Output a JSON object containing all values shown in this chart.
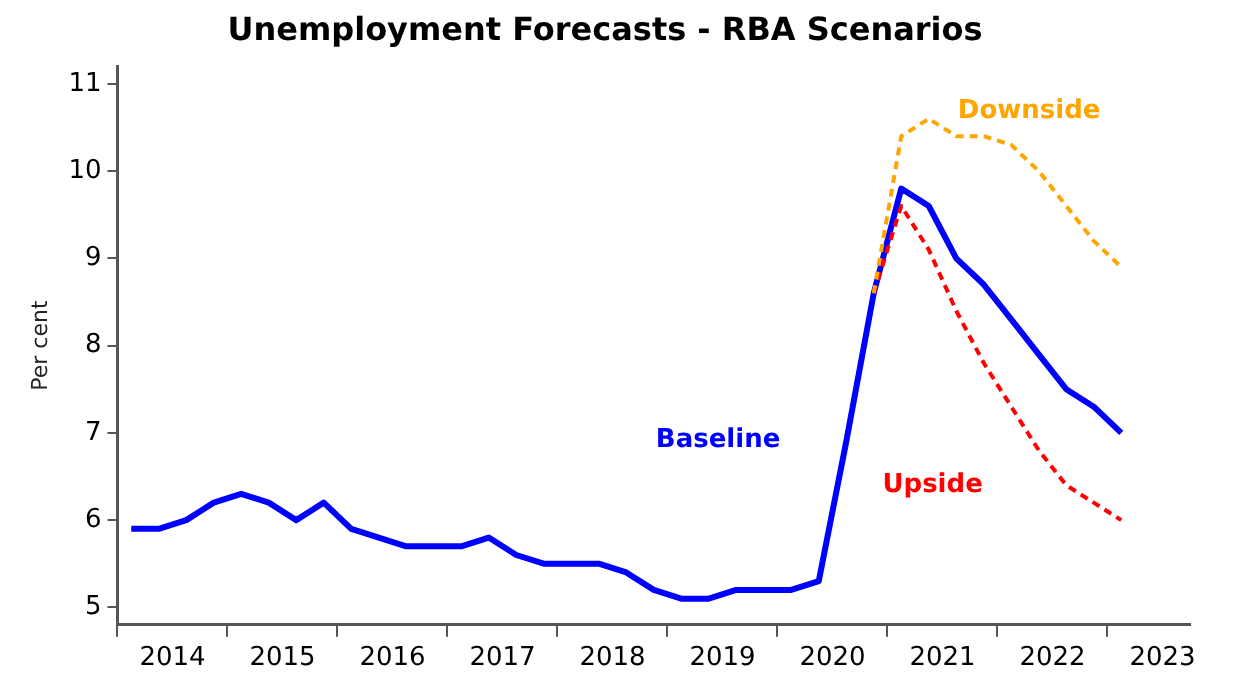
{
  "chart_data": {
    "type": "line",
    "title": "Unemployment Forecasts - RBA Scenarios",
    "ylabel": "Per cent",
    "x": [
      2014.125,
      2014.375,
      2014.625,
      2014.875,
      2015.125,
      2015.375,
      2015.625,
      2015.875,
      2016.125,
      2016.375,
      2016.625,
      2016.875,
      2017.125,
      2017.375,
      2017.625,
      2017.875,
      2018.125,
      2018.375,
      2018.625,
      2018.875,
      2019.125,
      2019.375,
      2019.625,
      2019.875,
      2020.125,
      2020.375,
      2020.625,
      2020.875,
      2021.125,
      2021.375,
      2021.625,
      2021.875,
      2022.125,
      2022.375,
      2022.625,
      2022.875,
      2023.125
    ],
    "series": [
      {
        "name": "Baseline",
        "color": "#0000ff",
        "line_style": "solid",
        "values": [
          5.9,
          5.9,
          6.0,
          6.2,
          6.3,
          6.2,
          6.0,
          6.2,
          5.9,
          5.8,
          5.7,
          5.7,
          5.7,
          5.8,
          5.6,
          5.5,
          5.5,
          5.5,
          5.4,
          5.2,
          5.1,
          5.1,
          5.2,
          5.2,
          5.2,
          5.3,
          6.9,
          8.6,
          9.8,
          9.6,
          9.0,
          8.7,
          8.3,
          7.9,
          7.5,
          7.3,
          7.0
        ]
      },
      {
        "name": "Downside",
        "color": "#ffa500",
        "line_style": "dashed",
        "values": [
          null,
          null,
          null,
          null,
          null,
          null,
          null,
          null,
          null,
          null,
          null,
          null,
          null,
          null,
          null,
          null,
          null,
          null,
          null,
          null,
          null,
          null,
          null,
          null,
          null,
          null,
          null,
          8.6,
          10.4,
          10.6,
          10.4,
          10.4,
          10.3,
          10.0,
          9.6,
          9.2,
          8.9
        ]
      },
      {
        "name": "Upside",
        "color": "#ff0000",
        "line_style": "dashed",
        "values": [
          null,
          null,
          null,
          null,
          null,
          null,
          null,
          null,
          null,
          null,
          null,
          null,
          null,
          null,
          null,
          null,
          null,
          null,
          null,
          null,
          null,
          null,
          null,
          null,
          null,
          null,
          null,
          8.6,
          9.6,
          9.1,
          8.4,
          7.8,
          7.3,
          6.8,
          6.4,
          6.2,
          6.0
        ]
      }
    ],
    "xlim": [
      2014,
      2023.75
    ],
    "xticks": [
      {
        "value": 2014,
        "label": null
      },
      {
        "value": 2014.5,
        "label": "2014"
      },
      {
        "value": 2015,
        "label": null
      },
      {
        "value": 2015.5,
        "label": "2015"
      },
      {
        "value": 2016,
        "label": null
      },
      {
        "value": 2016.5,
        "label": "2016"
      },
      {
        "value": 2017,
        "label": null
      },
      {
        "value": 2017.5,
        "label": "2017"
      },
      {
        "value": 2018,
        "label": null
      },
      {
        "value": 2018.5,
        "label": "2018"
      },
      {
        "value": 2019,
        "label": null
      },
      {
        "value": 2019.5,
        "label": "2019"
      },
      {
        "value": 2020,
        "label": null
      },
      {
        "value": 2020.5,
        "label": "2020"
      },
      {
        "value": 2021,
        "label": null
      },
      {
        "value": 2021.5,
        "label": "2021"
      },
      {
        "value": 2022,
        "label": null
      },
      {
        "value": 2022.5,
        "label": "2022"
      },
      {
        "value": 2023,
        "label": null
      },
      {
        "value": 2023.5,
        "label": "2023"
      }
    ],
    "ylim": [
      4.8,
      11.2
    ],
    "yticks": [
      5,
      6,
      7,
      8,
      9,
      10,
      11
    ],
    "grid": false,
    "legend": false,
    "marker": "none"
  }
}
